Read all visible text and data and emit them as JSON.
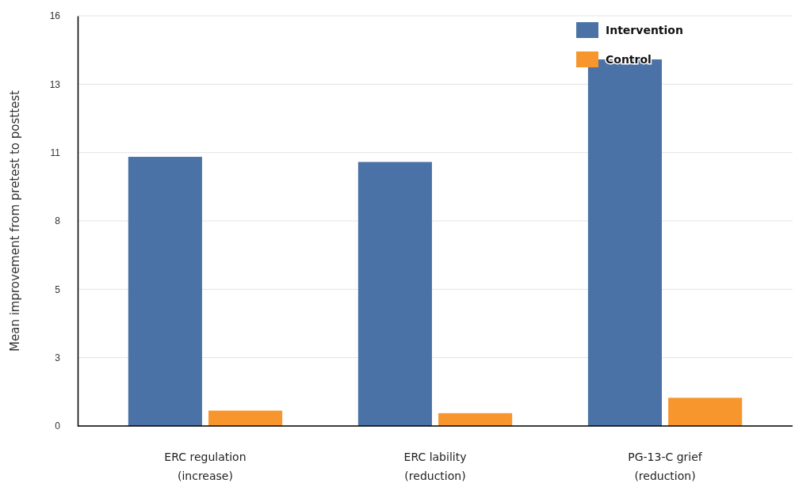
{
  "chart_data": {
    "type": "bar",
    "ylabel": "Mean improvement from pretest to posttest",
    "categories": [
      "ERC regulation\n(increase)",
      "ERC lability\n(reduction)",
      "PG-13-C grief\n(reduction)"
    ],
    "series": [
      {
        "name": "Intervention",
        "color": "#4a72a6",
        "values": [
          10.5,
          10.3,
          14.3
        ]
      },
      {
        "name": "Control",
        "color": "#f7962d",
        "values": [
          0.6,
          0.5,
          1.1
        ]
      }
    ],
    "ylim": [
      0,
      16
    ],
    "yticks": [
      0,
      {
        "value": 2.667,
        "label": "3"
      },
      {
        "value": 5.333,
        "label": "5"
      },
      8,
      {
        "value": 10.667,
        "label": "11"
      },
      {
        "value": 13.333,
        "label": "13"
      },
      16
    ],
    "grid": "y",
    "legend": "top right"
  }
}
